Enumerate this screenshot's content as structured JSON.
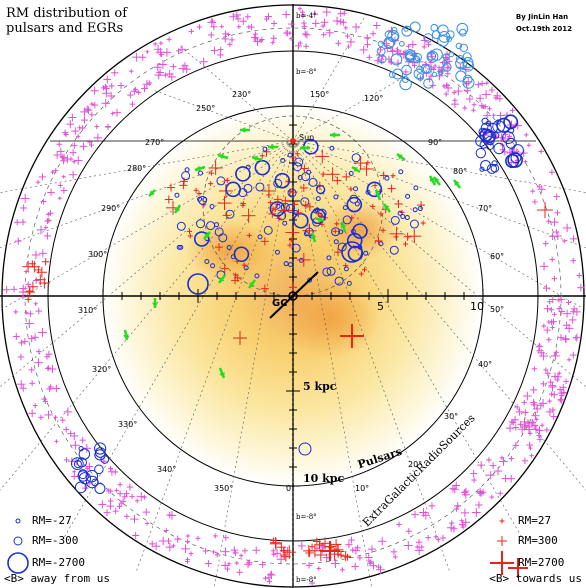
{
  "title_line1": "RM distribution of",
  "title_line2": "pulsars and EGRs",
  "credit_line1": "By JinLin Han",
  "credit_line2": "Oct.19th 2012",
  "sun_label": "Sun",
  "gc_label": "GC",
  "distance_labels": [
    "5 kpc",
    "10 kpc"
  ],
  "axis_numbers": [
    "5",
    "10"
  ],
  "region_labels": {
    "pulsars": "Pulsars",
    "egrs": "ExtraGalacticRadioSources"
  },
  "latitude_labels": {
    "top": "b=-8°",
    "top2": "b=-4°",
    "bottom": "b=-8°",
    "bottom2": "b=-8°"
  },
  "longitudes": [
    "0°",
    "10°",
    "20°",
    "30°",
    "40°",
    "50°",
    "60°",
    "70°",
    "80°",
    "90°",
    "120°",
    "150°",
    "230°",
    "250°",
    "270°",
    "280°",
    "290°",
    "300°",
    "310°",
    "320°",
    "330°",
    "340°",
    "350°"
  ],
  "legend_left": [
    {
      "label": "RM=-27",
      "size": "small"
    },
    {
      "label": "RM=-300",
      "size": "medium"
    },
    {
      "label": "RM=-2700",
      "size": "large"
    }
  ],
  "legend_right": [
    {
      "label": "RM=27",
      "size": "small"
    },
    {
      "label": "RM=300",
      "size": "medium"
    },
    {
      "label": "RM=2700",
      "size": "large"
    }
  ],
  "footer_left": "<B> away from us",
  "footer_right": "<B> towards us",
  "colors": {
    "negative": "#1a2fd0",
    "positive": "#e8251b",
    "egr_negative": "#3a8fe0",
    "egr_positive": "#e050d8",
    "field_arrow": "#22dd22",
    "disk_core": "#f0a030",
    "disk_outer": "#fff5c0"
  }
}
